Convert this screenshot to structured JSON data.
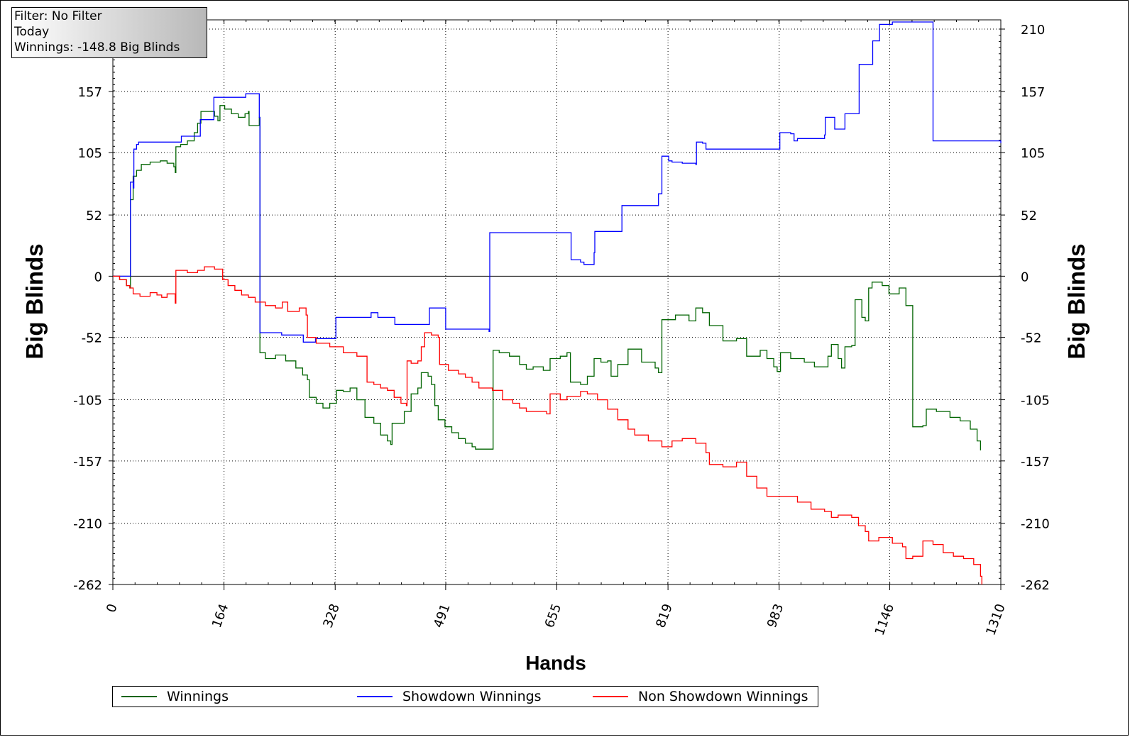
{
  "info": {
    "filter": "Filter: No Filter",
    "period": "Today",
    "winnings": "Winnings: -148.8 Big Blinds"
  },
  "chart_data": {
    "type": "line",
    "xlabel": "Hands",
    "ylabel": "Big Blinds",
    "xlim": [
      0,
      1310
    ],
    "ylim": [
      -262,
      210
    ],
    "x_ticks": [
      "0",
      "164",
      "328",
      "491",
      "655",
      "819",
      "983",
      "1146",
      "1310"
    ],
    "y_ticks": [
      "210",
      "157",
      "105",
      "52",
      "0",
      "-52",
      "-105",
      "-157",
      "-210",
      "-262"
    ],
    "grid": true,
    "legend_position": "bottom",
    "series": [
      {
        "name": "Winnings",
        "color": "#006400",
        "points": [
          [
            0,
            0
          ],
          [
            10,
            -3
          ],
          [
            20,
            -8
          ],
          [
            25,
            -10
          ],
          [
            26,
            65
          ],
          [
            30,
            85
          ],
          [
            35,
            90
          ],
          [
            42,
            95
          ],
          [
            55,
            97
          ],
          [
            70,
            98
          ],
          [
            80,
            96
          ],
          [
            90,
            93
          ],
          [
            92,
            88
          ],
          [
            93,
            110
          ],
          [
            100,
            112
          ],
          [
            110,
            115
          ],
          [
            120,
            122
          ],
          [
            125,
            130
          ],
          [
            130,
            140
          ],
          [
            140,
            140
          ],
          [
            150,
            136
          ],
          [
            155,
            132
          ],
          [
            158,
            145
          ],
          [
            165,
            142
          ],
          [
            175,
            138
          ],
          [
            185,
            135
          ],
          [
            195,
            138
          ],
          [
            200,
            140
          ],
          [
            201,
            128
          ],
          [
            216,
            135
          ],
          [
            217,
            -65
          ],
          [
            225,
            -70
          ],
          [
            240,
            -67
          ],
          [
            255,
            -72
          ],
          [
            270,
            -78
          ],
          [
            280,
            -84
          ],
          [
            287,
            -88
          ],
          [
            290,
            -103
          ],
          [
            300,
            -108
          ],
          [
            310,
            -112
          ],
          [
            320,
            -108
          ],
          [
            330,
            -97
          ],
          [
            340,
            -98
          ],
          [
            350,
            -95
          ],
          [
            360,
            -105
          ],
          [
            372,
            -120
          ],
          [
            385,
            -125
          ],
          [
            395,
            -135
          ],
          [
            405,
            -140
          ],
          [
            410,
            -143
          ],
          [
            412,
            -125
          ],
          [
            430,
            -115
          ],
          [
            440,
            -100
          ],
          [
            450,
            -95
          ],
          [
            455,
            -82
          ],
          [
            465,
            -85
          ],
          [
            470,
            -92
          ],
          [
            475,
            -110
          ],
          [
            480,
            -122
          ],
          [
            490,
            -128
          ],
          [
            500,
            -133
          ],
          [
            510,
            -138
          ],
          [
            520,
            -142
          ],
          [
            530,
            -145
          ],
          [
            535,
            -147
          ],
          [
            560,
            -147
          ],
          [
            561,
            -63
          ],
          [
            570,
            -65
          ],
          [
            585,
            -68
          ],
          [
            600,
            -75
          ],
          [
            610,
            -79
          ],
          [
            620,
            -77
          ],
          [
            635,
            -80
          ],
          [
            645,
            -70
          ],
          [
            660,
            -68
          ],
          [
            670,
            -65
          ],
          [
            675,
            -90
          ],
          [
            690,
            -92
          ],
          [
            700,
            -85
          ],
          [
            710,
            -70
          ],
          [
            720,
            -73
          ],
          [
            730,
            -72
          ],
          [
            735,
            -85
          ],
          [
            745,
            -75
          ],
          [
            760,
            -62
          ],
          [
            780,
            -73
          ],
          [
            800,
            -78
          ],
          [
            805,
            -82
          ],
          [
            810,
            -37
          ],
          [
            830,
            -33
          ],
          [
            850,
            -38
          ],
          [
            860,
            -27
          ],
          [
            870,
            -31
          ],
          [
            880,
            -42
          ],
          [
            900,
            -55
          ],
          [
            920,
            -53
          ],
          [
            935,
            -68
          ],
          [
            955,
            -63
          ],
          [
            965,
            -70
          ],
          [
            975,
            -77
          ],
          [
            980,
            -81
          ],
          [
            985,
            -65
          ],
          [
            1000,
            -70
          ],
          [
            1020,
            -73
          ],
          [
            1035,
            -77
          ],
          [
            1055,
            -68
          ],
          [
            1060,
            -58
          ],
          [
            1070,
            -70
          ],
          [
            1075,
            -78
          ],
          [
            1080,
            -60
          ],
          [
            1090,
            -59
          ],
          [
            1095,
            -20
          ],
          [
            1105,
            -35
          ],
          [
            1110,
            -38
          ],
          [
            1115,
            -10
          ],
          [
            1120,
            -5
          ],
          [
            1135,
            -8
          ],
          [
            1145,
            -15
          ],
          [
            1160,
            -10
          ],
          [
            1170,
            -25
          ],
          [
            1180,
            -128
          ],
          [
            1195,
            -127
          ],
          [
            1200,
            -113
          ],
          [
            1215,
            -115
          ],
          [
            1235,
            -120
          ],
          [
            1250,
            -123
          ],
          [
            1265,
            -130
          ],
          [
            1275,
            -140
          ],
          [
            1280,
            -148
          ]
        ]
      },
      {
        "name": "Showdown Winnings",
        "color": "#0000ff",
        "points": [
          [
            0,
            0
          ],
          [
            25,
            0
          ],
          [
            26,
            80
          ],
          [
            30,
            75
          ],
          [
            31,
            108
          ],
          [
            35,
            112
          ],
          [
            38,
            114
          ],
          [
            100,
            114
          ],
          [
            101,
            119
          ],
          [
            128,
            119
          ],
          [
            129,
            133
          ],
          [
            148,
            133
          ],
          [
            149,
            152
          ],
          [
            195,
            152
          ],
          [
            196,
            155
          ],
          [
            215,
            155
          ],
          [
            216,
            135
          ],
          [
            217,
            -48
          ],
          [
            248,
            -48
          ],
          [
            249,
            -50
          ],
          [
            280,
            -50
          ],
          [
            281,
            -56
          ],
          [
            298,
            -56
          ],
          [
            299,
            -53
          ],
          [
            328,
            -53
          ],
          [
            329,
            -35
          ],
          [
            380,
            -35
          ],
          [
            381,
            -31
          ],
          [
            390,
            -31
          ],
          [
            391,
            -35
          ],
          [
            415,
            -35
          ],
          [
            416,
            -41
          ],
          [
            466,
            -41
          ],
          [
            467,
            -27
          ],
          [
            490,
            -27
          ],
          [
            491,
            -45
          ],
          [
            550,
            -45
          ],
          [
            555,
            -47
          ],
          [
            556,
            37
          ],
          [
            675,
            37
          ],
          [
            676,
            14
          ],
          [
            690,
            12
          ],
          [
            695,
            10
          ],
          [
            700,
            10
          ],
          [
            710,
            20
          ],
          [
            711,
            38
          ],
          [
            750,
            38
          ],
          [
            751,
            60
          ],
          [
            800,
            60
          ],
          [
            805,
            70
          ],
          [
            810,
            102
          ],
          [
            820,
            98
          ],
          [
            825,
            97
          ],
          [
            840,
            96
          ],
          [
            860,
            95
          ],
          [
            861,
            114
          ],
          [
            870,
            113
          ],
          [
            875,
            108
          ],
          [
            983,
            108
          ],
          [
            984,
            122
          ],
          [
            1000,
            121
          ],
          [
            1005,
            115
          ],
          [
            1010,
            117
          ],
          [
            1050,
            120
          ],
          [
            1051,
            135
          ],
          [
            1060,
            135
          ],
          [
            1065,
            125
          ],
          [
            1075,
            125
          ],
          [
            1080,
            138
          ],
          [
            1100,
            138
          ],
          [
            1101,
            180
          ],
          [
            1120,
            180
          ],
          [
            1121,
            200
          ],
          [
            1130,
            200
          ],
          [
            1131,
            214
          ],
          [
            1140,
            214
          ],
          [
            1150,
            216
          ],
          [
            1205,
            216
          ],
          [
            1210,
            115
          ],
          [
            1310,
            113
          ]
        ]
      },
      {
        "name": "Non Showdown Winnings",
        "color": "#ff0000",
        "points": [
          [
            0,
            0
          ],
          [
            10,
            -3
          ],
          [
            20,
            -8
          ],
          [
            25,
            -10
          ],
          [
            30,
            -15
          ],
          [
            40,
            -17
          ],
          [
            55,
            -14
          ],
          [
            65,
            -16
          ],
          [
            72,
            -18
          ],
          [
            80,
            -15
          ],
          [
            92,
            -23
          ],
          [
            93,
            5
          ],
          [
            110,
            3
          ],
          [
            125,
            5
          ],
          [
            135,
            8
          ],
          [
            150,
            6
          ],
          [
            162,
            -3
          ],
          [
            170,
            -8
          ],
          [
            180,
            -12
          ],
          [
            190,
            -16
          ],
          [
            200,
            -18
          ],
          [
            210,
            -22
          ],
          [
            225,
            -25
          ],
          [
            240,
            -27
          ],
          [
            250,
            -22
          ],
          [
            258,
            -30
          ],
          [
            275,
            -27
          ],
          [
            285,
            -33
          ],
          [
            287,
            -52
          ],
          [
            300,
            -57
          ],
          [
            310,
            -57
          ],
          [
            320,
            -60
          ],
          [
            340,
            -65
          ],
          [
            360,
            -68
          ],
          [
            375,
            -90
          ],
          [
            385,
            -92
          ],
          [
            395,
            -95
          ],
          [
            405,
            -97
          ],
          [
            415,
            -103
          ],
          [
            425,
            -108
          ],
          [
            433,
            -110
          ],
          [
            434,
            -72
          ],
          [
            440,
            -74
          ],
          [
            450,
            -72
          ],
          [
            455,
            -60
          ],
          [
            460,
            -48
          ],
          [
            470,
            -50
          ],
          [
            480,
            -52
          ],
          [
            482,
            -75
          ],
          [
            495,
            -80
          ],
          [
            510,
            -83
          ],
          [
            520,
            -86
          ],
          [
            530,
            -90
          ],
          [
            540,
            -95
          ],
          [
            560,
            -97
          ],
          [
            575,
            -105
          ],
          [
            590,
            -108
          ],
          [
            600,
            -112
          ],
          [
            610,
            -115
          ],
          [
            640,
            -117
          ],
          [
            645,
            -100
          ],
          [
            660,
            -105
          ],
          [
            670,
            -102
          ],
          [
            690,
            -98
          ],
          [
            700,
            -100
          ],
          [
            715,
            -105
          ],
          [
            730,
            -113
          ],
          [
            745,
            -122
          ],
          [
            760,
            -130
          ],
          [
            770,
            -135
          ],
          [
            790,
            -140
          ],
          [
            810,
            -145
          ],
          [
            825,
            -140
          ],
          [
            840,
            -138
          ],
          [
            860,
            -142
          ],
          [
            875,
            -150
          ],
          [
            880,
            -160
          ],
          [
            900,
            -162
          ],
          [
            920,
            -158
          ],
          [
            935,
            -170
          ],
          [
            950,
            -180
          ],
          [
            965,
            -187
          ],
          [
            990,
            -187
          ],
          [
            1010,
            -192
          ],
          [
            1030,
            -198
          ],
          [
            1050,
            -200
          ],
          [
            1060,
            -205
          ],
          [
            1070,
            -203
          ],
          [
            1090,
            -205
          ],
          [
            1100,
            -212
          ],
          [
            1110,
            -217
          ],
          [
            1115,
            -225
          ],
          [
            1130,
            -222
          ],
          [
            1150,
            -227
          ],
          [
            1165,
            -230
          ],
          [
            1170,
            -240
          ],
          [
            1180,
            -238
          ],
          [
            1190,
            -238
          ],
          [
            1195,
            -225
          ],
          [
            1210,
            -228
          ],
          [
            1225,
            -235
          ],
          [
            1240,
            -238
          ],
          [
            1255,
            -240
          ],
          [
            1270,
            -245
          ],
          [
            1280,
            -255
          ],
          [
            1282,
            -262
          ]
        ]
      }
    ]
  }
}
